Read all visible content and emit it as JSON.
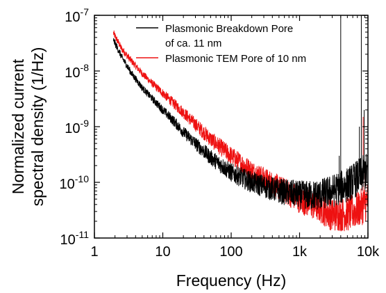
{
  "chart_data": {
    "type": "line",
    "title": "",
    "xlabel": "Frequency (Hz)",
    "ylabel_lines": [
      "Normalized current",
      "spectral density (1/Hz)"
    ],
    "x_scale": "log",
    "y_scale": "log",
    "xlim": [
      1,
      10000
    ],
    "ylim": [
      1e-11,
      1e-07
    ],
    "x_ticks": [
      {
        "value": 1,
        "label": "1"
      },
      {
        "value": 10,
        "label": "10"
      },
      {
        "value": 100,
        "label": "100"
      },
      {
        "value": 1000,
        "label": "1k"
      },
      {
        "value": 10000,
        "label": "10k"
      }
    ],
    "y_ticks": [
      {
        "value": 1e-11,
        "base": "10",
        "exp": "-11"
      },
      {
        "value": 1e-10,
        "base": "10",
        "exp": "-10"
      },
      {
        "value": 1e-09,
        "base": "10",
        "exp": "-9"
      },
      {
        "value": 1e-08,
        "base": "10",
        "exp": "-8"
      },
      {
        "value": 1e-07,
        "base": "10",
        "exp": "-7"
      }
    ],
    "grid": false,
    "legend_position": "top-right",
    "series": [
      {
        "name": "Plasmonic Breakdown Pore of ca. 11 nm",
        "legend_lines": [
          "Plasmonic Breakdown Pore",
          "of ca. 11 nm"
        ],
        "color": "#000000",
        "x": [
          1.9,
          2.5,
          3.5,
          5,
          7,
          10,
          15,
          20,
          30,
          50,
          100,
          200,
          500,
          1000,
          1500,
          2000,
          3000,
          5000,
          7000,
          9000,
          10000
        ],
        "y": [
          3.6e-08,
          1.8e-08,
          9e-09,
          5e-09,
          3.2e-09,
          2e-09,
          1.2e-09,
          8e-10,
          5e-10,
          2.8e-10,
          1.5e-10,
          1e-10,
          7e-11,
          6e-11,
          5.8e-11,
          6e-11,
          7e-11,
          9e-11,
          1.2e-10,
          1.5e-10,
          1.6e-10
        ],
        "spikes": [
          {
            "x": 4000,
            "y": 1e-07
          },
          {
            "x": 8000,
            "y": 1e-07
          },
          {
            "x": 8800,
            "y": 2e-09
          },
          {
            "x": 7500,
            "y": 1e-09
          },
          {
            "x": 3800,
            "y": 3e-10
          }
        ]
      },
      {
        "name": "Plasmonic TEM Pore of 10 nm",
        "legend_lines": [
          "Plasmonic TEM Pore of 10 nm"
        ],
        "color": "#ee1111",
        "x": [
          1.9,
          2.5,
          3.5,
          5,
          7,
          10,
          15,
          20,
          30,
          50,
          100,
          200,
          500,
          1000,
          2000,
          3000,
          5000,
          7000,
          9000,
          10000
        ],
        "y": [
          4.8e-08,
          2.5e-08,
          1.5e-08,
          9e-09,
          6e-09,
          4e-09,
          2.5e-09,
          1.8e-09,
          1.1e-09,
          6e-10,
          3e-10,
          1.6e-10,
          8e-11,
          5e-11,
          3.5e-11,
          2.6e-11,
          2.7e-11,
          3.2e-11,
          4e-11,
          5e-11
        ],
        "spikes": [
          {
            "x": 8500,
            "y": 1.5e-09
          },
          {
            "x": 9000,
            "y": 2e-10
          }
        ]
      }
    ]
  }
}
